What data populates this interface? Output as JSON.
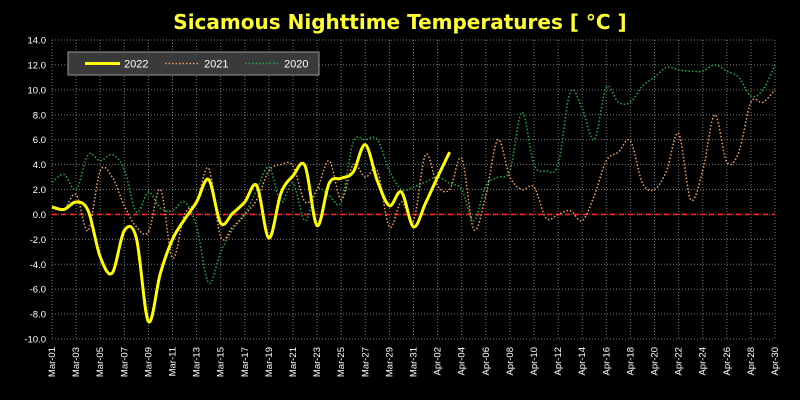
{
  "chart_data": {
    "type": "line",
    "title": "Sicamous Nighttime Temperatures [ °C ]",
    "ylim": [
      -10,
      14
    ],
    "y_ticks": [
      "14.0",
      "12.0",
      "10.0",
      "8.0",
      "6.0",
      "4.0",
      "2.0",
      "0.0",
      "-2.0",
      "-4.0",
      "-6.0",
      "-8.0",
      "-10.0"
    ],
    "x_ticks": [
      "Mar-01",
      "Mar-03",
      "Mar-05",
      "Mar-07",
      "Mar-09",
      "Mar-11",
      "Mar-13",
      "Mar-15",
      "Mar-17",
      "Mar-19",
      "Mar-21",
      "Mar-23",
      "Mar-25",
      "Mar-27",
      "Mar-29",
      "Mar-31",
      "Apr-02",
      "Apr-04",
      "Apr-06",
      "Apr-08",
      "Apr-10",
      "Apr-12",
      "Apr-14",
      "Apr-16",
      "Apr-18",
      "Apr-20",
      "Apr-22",
      "Apr-24",
      "Apr-26",
      "Apr-28",
      "Apr-30"
    ],
    "grid": true,
    "reference_line": {
      "y": 0,
      "color": "#ff2222",
      "style": "dashed"
    },
    "legend": {
      "placement": "top-left"
    },
    "series": [
      {
        "name": "2022",
        "color": "#ffff00",
        "style": "solid",
        "x": [
          "Mar-01",
          "Mar-02",
          "Mar-03",
          "Mar-04",
          "Mar-05",
          "Mar-06",
          "Mar-07",
          "Mar-08",
          "Mar-09",
          "Mar-10",
          "Mar-11",
          "Mar-12",
          "Mar-13",
          "Mar-14",
          "Mar-15",
          "Mar-16",
          "Mar-17",
          "Mar-18",
          "Mar-19",
          "Mar-20",
          "Mar-21",
          "Mar-22",
          "Mar-23",
          "Mar-24",
          "Mar-25",
          "Mar-26",
          "Mar-27",
          "Mar-28",
          "Mar-29",
          "Mar-30",
          "Mar-31",
          "Apr-01",
          "Apr-02",
          "Apr-03",
          "Apr-04"
        ],
        "values": [
          0.6,
          0.4,
          1.0,
          0.3,
          -3.4,
          -4.7,
          -1.3,
          -1.9,
          -8.6,
          -4.7,
          -2.0,
          -0.4,
          1.0,
          2.8,
          -0.7,
          0.1,
          1.0,
          2.3,
          -1.9,
          1.7,
          3.1,
          3.9,
          -0.9,
          2.5,
          2.9,
          3.4,
          5.6,
          2.7,
          0.7,
          1.8,
          -1.0,
          0.9,
          3.0,
          5.0,
          null
        ]
      },
      {
        "name": "2021",
        "color": "#f0a060",
        "style": "dotted",
        "x": [
          "Mar-01",
          "Mar-02",
          "Mar-03",
          "Mar-04",
          "Mar-05",
          "Mar-06",
          "Mar-07",
          "Mar-08",
          "Mar-09",
          "Mar-10",
          "Mar-11",
          "Mar-12",
          "Mar-13",
          "Mar-14",
          "Mar-15",
          "Mar-16",
          "Mar-17",
          "Mar-18",
          "Mar-19",
          "Mar-20",
          "Mar-21",
          "Mar-22",
          "Mar-23",
          "Mar-24",
          "Mar-25",
          "Mar-26",
          "Mar-27",
          "Mar-28",
          "Mar-29",
          "Mar-30",
          "Mar-31",
          "Apr-01",
          "Apr-02",
          "Apr-03",
          "Apr-04",
          "Apr-05",
          "Apr-06",
          "Apr-07",
          "Apr-08",
          "Apr-09",
          "Apr-10",
          "Apr-11",
          "Apr-12",
          "Apr-13",
          "Apr-14",
          "Apr-15",
          "Apr-16",
          "Apr-17",
          "Apr-18",
          "Apr-19",
          "Apr-20",
          "Apr-21",
          "Apr-22",
          "Apr-23",
          "Apr-24",
          "Apr-25",
          "Apr-26",
          "Apr-27",
          "Apr-28",
          "Apr-29",
          "Apr-30"
        ],
        "values": [
          0.5,
          0.4,
          1.6,
          -1.3,
          3.5,
          3.0,
          0.7,
          -1.0,
          -1.4,
          2.0,
          -3.5,
          0.0,
          1.0,
          3.7,
          -1.8,
          -1.0,
          0.0,
          1.2,
          3.5,
          4.0,
          3.9,
          1.0,
          2.0,
          4.3,
          1.2,
          4.0,
          3.0,
          3.5,
          -1.0,
          1.0,
          -0.5,
          4.8,
          2.3,
          2.0,
          4.5,
          -1.2,
          1.5,
          6.0,
          3.0,
          2.0,
          2.2,
          -0.3,
          0.0,
          0.3,
          -0.5,
          1.5,
          4.3,
          5.0,
          5.9,
          2.5,
          2.0,
          3.5,
          6.5,
          1.2,
          3.5,
          8.0,
          4.2,
          5.0,
          9.0,
          9.0,
          10.0
        ]
      },
      {
        "name": "2020",
        "color": "#22aa44",
        "style": "dotted",
        "x": [
          "Mar-01",
          "Mar-02",
          "Mar-03",
          "Mar-04",
          "Mar-05",
          "Mar-06",
          "Mar-07",
          "Mar-08",
          "Mar-09",
          "Mar-10",
          "Mar-11",
          "Mar-12",
          "Mar-13",
          "Mar-14",
          "Mar-15",
          "Mar-16",
          "Mar-17",
          "Mar-18",
          "Mar-19",
          "Mar-20",
          "Mar-21",
          "Mar-22",
          "Mar-23",
          "Mar-24",
          "Mar-25",
          "Mar-26",
          "Mar-27",
          "Mar-28",
          "Mar-29",
          "Mar-30",
          "Mar-31",
          "Apr-01",
          "Apr-02",
          "Apr-03",
          "Apr-04",
          "Apr-05",
          "Apr-06",
          "Apr-07",
          "Apr-08",
          "Apr-09",
          "Apr-10",
          "Apr-11",
          "Apr-12",
          "Apr-13",
          "Apr-14",
          "Apr-15",
          "Apr-16",
          "Apr-17",
          "Apr-18",
          "Apr-19",
          "Apr-20",
          "Apr-21",
          "Apr-22",
          "Apr-23",
          "Apr-24",
          "Apr-25",
          "Apr-26",
          "Apr-27",
          "Apr-28",
          "Apr-29",
          "Apr-30"
        ],
        "values": [
          2.6,
          3.2,
          2.0,
          4.8,
          4.3,
          4.8,
          3.6,
          0.2,
          1.8,
          0.5,
          0.3,
          1.0,
          -1.0,
          -5.5,
          -3.0,
          -1.2,
          0.0,
          2.0,
          3.8,
          1.0,
          2.5,
          -0.5,
          2.0,
          1.5,
          1.0,
          5.8,
          6.0,
          6.0,
          3.5,
          2.0,
          2.2,
          2.6,
          3.0,
          2.5,
          2.0,
          -0.5,
          2.3,
          3.0,
          3.5,
          8.2,
          4.0,
          3.5,
          4.0,
          9.8,
          8.5,
          6.0,
          10.2,
          9.0,
          9.0,
          10.3,
          11.0,
          11.8,
          11.6,
          11.5,
          11.5,
          12.0,
          11.5,
          11.0,
          9.5,
          10.0,
          12.0
        ]
      }
    ]
  }
}
